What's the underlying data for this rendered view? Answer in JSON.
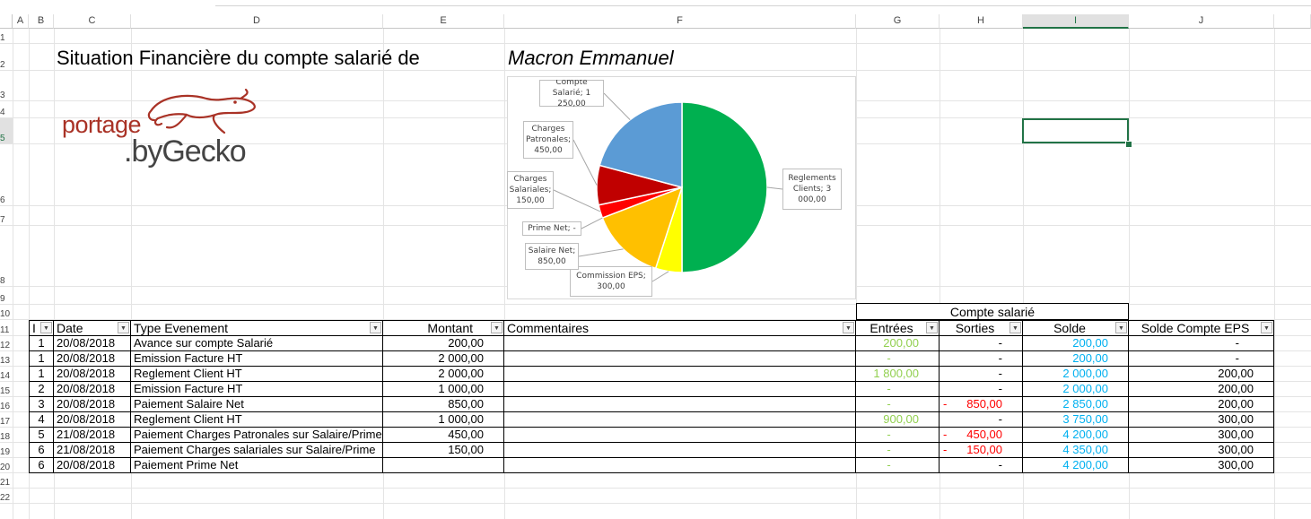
{
  "sheet": {
    "columns": [
      "A",
      "B",
      "C",
      "D",
      "E",
      "F",
      "G",
      "H",
      "I",
      "J"
    ],
    "selected_column": "I",
    "rows": [
      "1",
      "2",
      "3",
      "4",
      "5",
      "6",
      "7",
      "8",
      "9",
      "10",
      "11",
      "12",
      "13",
      "14",
      "15",
      "16",
      "17",
      "18",
      "19",
      "20",
      "21",
      "22"
    ],
    "selected_row": "5"
  },
  "header": {
    "title": "Situation Financière du compte salarié de",
    "employee_name": "Macron Emmanuel"
  },
  "logo": {
    "line1": "portage",
    "line2": ".byGecko",
    "colors": {
      "accent": "#a93226",
      "text": "#444444"
    }
  },
  "chart_data": {
    "type": "pie",
    "slices": [
      {
        "name": "Reglements Clients",
        "value": 3000,
        "label": "Reglements Clients; 3 000,00",
        "color": "#00b050"
      },
      {
        "name": "Commission EPS",
        "value": 300,
        "label": "Commission EPS; 300,00",
        "color": "#ffff00"
      },
      {
        "name": "Salaire Net",
        "value": 850,
        "label": "Salaire Net; 850,00",
        "color": "#ffc000"
      },
      {
        "name": "Prime Net",
        "value": 0,
        "label": "Prime Net; -",
        "color": "#ff0000"
      },
      {
        "name": "Charges Salariales",
        "value": 150,
        "label": "Charges Salariales; 150,00",
        "color": "#ff0000"
      },
      {
        "name": "Charges Patronales",
        "value": 450,
        "label": "Charges Patronales; 450,00",
        "color": "#c00000"
      },
      {
        "name": "Compte Salarié",
        "value": 1250,
        "label": "Compte Salarié; 1 250,00",
        "color": "#5b9bd5"
      }
    ]
  },
  "table": {
    "group_header": "Compte salarié",
    "headers": {
      "id": "I",
      "date": "Date",
      "type": "Type Evenement",
      "montant": "Montant",
      "commentaires": "Commentaires",
      "entrees": "Entrées",
      "sorties": "Sorties",
      "solde": "Solde",
      "solde_eps": "Solde Compte EPS"
    },
    "rows": [
      {
        "id": "1",
        "date": "20/08/2018",
        "type": "Avance sur compte Salarié",
        "montant": "200,00",
        "commentaires": "",
        "entrees": "200,00",
        "sorties_sign": "",
        "sorties": "-",
        "solde": "200,00",
        "solde_eps": "-"
      },
      {
        "id": "1",
        "date": "20/08/2018",
        "type": "Emission Facture HT",
        "montant": "2 000,00",
        "commentaires": "",
        "entrees": "-",
        "sorties_sign": "",
        "sorties": "-",
        "solde": "200,00",
        "solde_eps": "-"
      },
      {
        "id": "1",
        "date": "20/08/2018",
        "type": "Reglement Client HT",
        "montant": "2 000,00",
        "commentaires": "",
        "entrees": "1 800,00",
        "sorties_sign": "",
        "sorties": "-",
        "solde": "2 000,00",
        "solde_eps": "200,00"
      },
      {
        "id": "2",
        "date": "20/08/2018",
        "type": "Emission Facture HT",
        "montant": "1 000,00",
        "commentaires": "",
        "entrees": "-",
        "sorties_sign": "",
        "sorties": "-",
        "solde": "2 000,00",
        "solde_eps": "200,00"
      },
      {
        "id": "3",
        "date": "20/08/2018",
        "type": "Paiement Salaire Net",
        "montant": "850,00",
        "commentaires": "",
        "entrees": "-",
        "sorties_sign": "-",
        "sorties": "850,00",
        "solde": "2 850,00",
        "solde_eps": "200,00"
      },
      {
        "id": "4",
        "date": "20/08/2018",
        "type": "Reglement Client HT",
        "montant": "1 000,00",
        "commentaires": "",
        "entrees": "900,00",
        "sorties_sign": "",
        "sorties": "-",
        "solde": "3 750,00",
        "solde_eps": "300,00"
      },
      {
        "id": "5",
        "date": "21/08/2018",
        "type": "Paiement Charges Patronales sur Salaire/Prime",
        "montant": "450,00",
        "commentaires": "",
        "entrees": "-",
        "sorties_sign": "-",
        "sorties": "450,00",
        "solde": "4 200,00",
        "solde_eps": "300,00"
      },
      {
        "id": "6",
        "date": "21/08/2018",
        "type": "Paiement Charges salariales sur Salaire/Prime",
        "montant": "150,00",
        "commentaires": "",
        "entrees": "-",
        "sorties_sign": "-",
        "sorties": "150,00",
        "solde": "4 350,00",
        "solde_eps": "300,00"
      },
      {
        "id": "6",
        "date": "20/08/2018",
        "type": "Paiement Prime Net",
        "montant": "",
        "commentaires": "",
        "entrees": "-",
        "sorties_sign": "",
        "sorties": "-",
        "solde": "4 200,00",
        "solde_eps": "300,00"
      }
    ]
  },
  "colors": {
    "entrees": "#92d050",
    "sorties": "#ff0000",
    "solde": "#00b0f0",
    "excel_green": "#217346"
  }
}
